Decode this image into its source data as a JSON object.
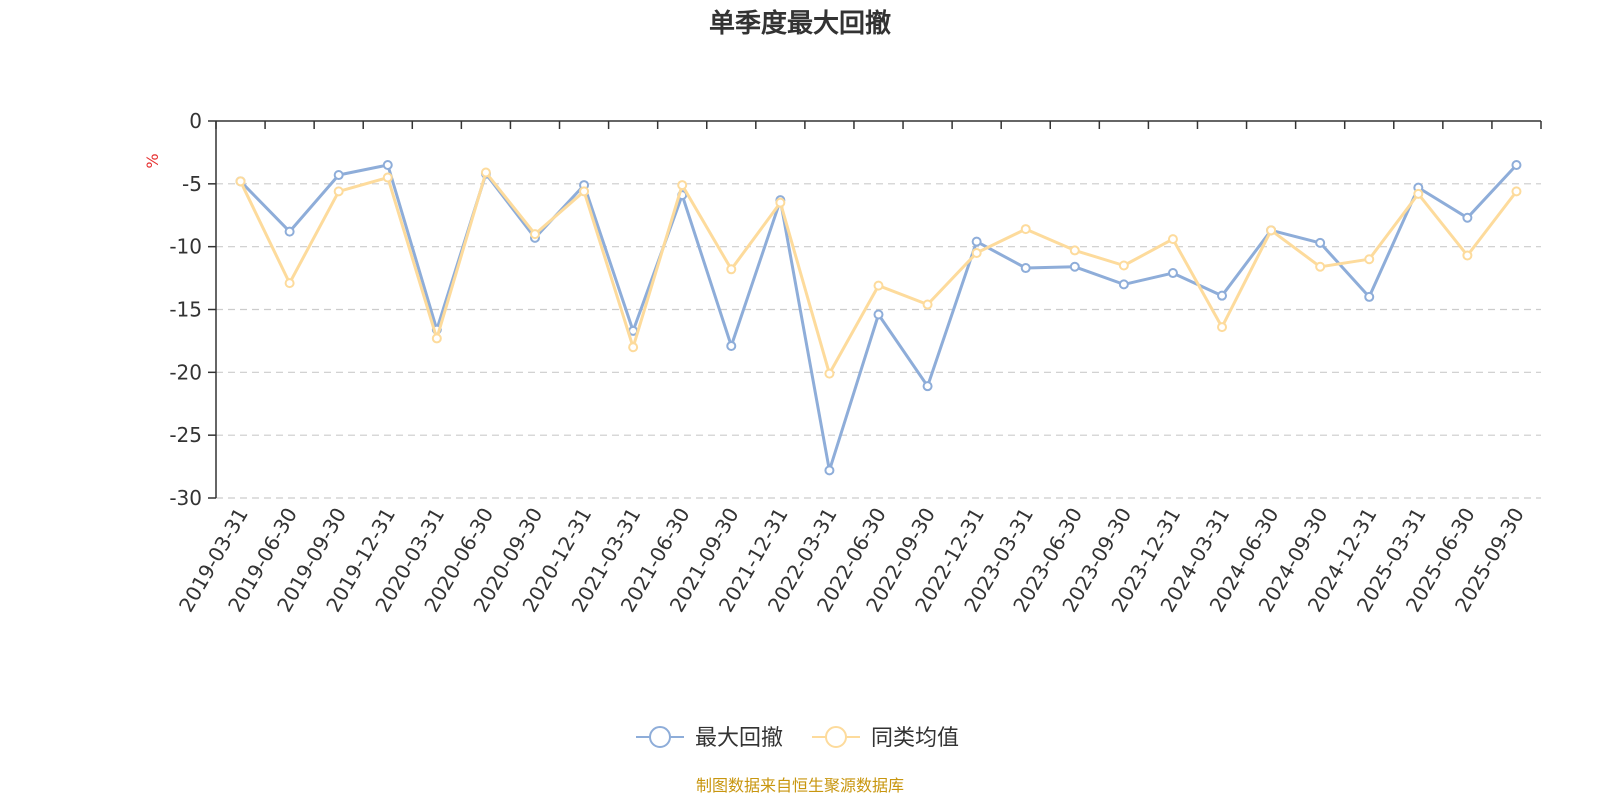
{
  "chart_data": {
    "type": "line",
    "title": "单季度最大回撤",
    "ylabel": "%",
    "ylim": [
      -30,
      0
    ],
    "yticks": [
      0,
      -5,
      -10,
      -15,
      -20,
      -25,
      -30
    ],
    "grid": true,
    "legend_position": "bottom-center",
    "categories": [
      "2019-03-31",
      "2019-06-30",
      "2019-09-30",
      "2019-12-31",
      "2020-03-31",
      "2020-06-30",
      "2020-09-30",
      "2020-12-31",
      "2021-03-31",
      "2021-06-30",
      "2021-09-30",
      "2021-12-31",
      "2022-03-31",
      "2022-06-30",
      "2022-09-30",
      "2022-12-31",
      "2023-03-31",
      "2023-06-30",
      "2023-09-30",
      "2023-12-31",
      "2024-03-31",
      "2024-06-30",
      "2024-09-30",
      "2024-12-31",
      "2025-03-31",
      "2025-06-30",
      "2025-09-30"
    ],
    "series": [
      {
        "name": "最大回撤",
        "color": "#8eadd9",
        "values": [
          -4.8,
          -8.8,
          -4.3,
          -3.5,
          -16.6,
          -4.2,
          -9.3,
          -5.1,
          -16.7,
          -5.9,
          -17.9,
          -6.3,
          -27.8,
          -15.4,
          -21.1,
          -9.6,
          -11.7,
          -11.6,
          -13.0,
          -12.1,
          -13.9,
          -8.7,
          -9.7,
          -14.0,
          -5.3,
          -7.7,
          -3.5
        ]
      },
      {
        "name": "同类均值",
        "color": "#fddb9c",
        "values": [
          -4.8,
          -12.9,
          -5.6,
          -4.5,
          -17.3,
          -4.1,
          -9.0,
          -5.6,
          -18.0,
          -5.1,
          -11.8,
          -6.5,
          -20.1,
          -13.1,
          -14.6,
          -10.5,
          -8.6,
          -10.3,
          -11.5,
          -9.4,
          -16.4,
          -8.7,
          -11.6,
          -11.0,
          -5.8,
          -10.7,
          -5.6
        ]
      }
    ]
  },
  "source_text": "制图数据来自恒生聚源数据库",
  "colors": {
    "unit_label": "#e62f2f",
    "source_text": "#c8960f",
    "axis": "#333333",
    "grid": "#cccccc"
  }
}
